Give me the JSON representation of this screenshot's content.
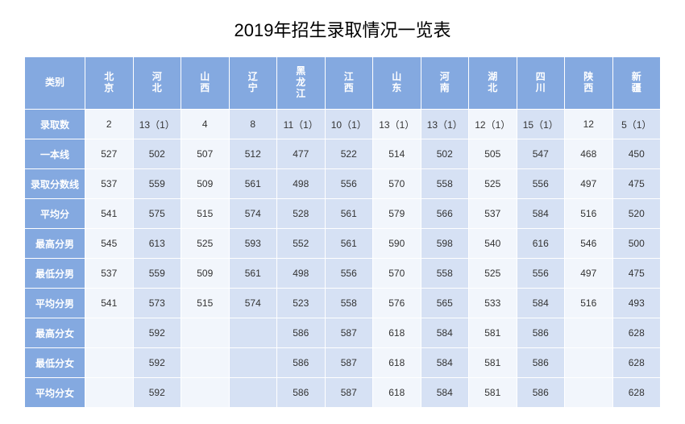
{
  "title": "2019年招生录取情况一览表",
  "headers": [
    "类别",
    "北京",
    "河北",
    "山西",
    "辽宁",
    "黑龙江",
    "江西",
    "山东",
    "河南",
    "湖北",
    "四川",
    "陕西",
    "新疆"
  ],
  "col_shade": [
    "light",
    "dark",
    "light",
    "dark",
    "dark",
    "dark",
    "light",
    "dark",
    "light",
    "dark",
    "light",
    "dark"
  ],
  "rows": [
    {
      "label": "录取数",
      "cells": [
        "2",
        "13（1）",
        "4",
        "8",
        "11（1）",
        "10（1）",
        "13（1）",
        "13（1）",
        "12（1）",
        "15（1）",
        "12",
        "5（1）"
      ]
    },
    {
      "label": "一本线",
      "cells": [
        "527",
        "502",
        "507",
        "512",
        "477",
        "522",
        "514",
        "502",
        "505",
        "547",
        "468",
        "450"
      ]
    },
    {
      "label": "录取分数线",
      "cells": [
        "537",
        "559",
        "509",
        "561",
        "498",
        "556",
        "570",
        "558",
        "525",
        "556",
        "497",
        "475"
      ]
    },
    {
      "label": "平均分",
      "cells": [
        "541",
        "575",
        "515",
        "574",
        "528",
        "561",
        "579",
        "566",
        "537",
        "584",
        "516",
        "520"
      ]
    },
    {
      "label": "最高分男",
      "cells": [
        "545",
        "613",
        "525",
        "593",
        "552",
        "561",
        "590",
        "598",
        "540",
        "616",
        "546",
        "500"
      ]
    },
    {
      "label": "最低分男",
      "cells": [
        "537",
        "559",
        "509",
        "561",
        "498",
        "556",
        "570",
        "558",
        "525",
        "556",
        "497",
        "475"
      ]
    },
    {
      "label": "平均分男",
      "cells": [
        "541",
        "573",
        "515",
        "574",
        "523",
        "558",
        "576",
        "565",
        "533",
        "584",
        "516",
        "493"
      ]
    },
    {
      "label": "最高分女",
      "cells": [
        "",
        "592",
        "",
        "",
        "586",
        "587",
        "618",
        "584",
        "581",
        "586",
        "",
        "628"
      ]
    },
    {
      "label": "最低分女",
      "cells": [
        "",
        "592",
        "",
        "",
        "586",
        "587",
        "618",
        "584",
        "581",
        "586",
        "",
        "628"
      ]
    },
    {
      "label": "平均分女",
      "cells": [
        "",
        "592",
        "",
        "",
        "586",
        "587",
        "618",
        "584",
        "581",
        "586",
        "",
        "628"
      ]
    }
  ],
  "colors": {
    "header_bg": "#84a9e0",
    "light_bg": "#f2f6fc",
    "dark_bg": "#d6e1f4",
    "border": "#ffffff"
  }
}
